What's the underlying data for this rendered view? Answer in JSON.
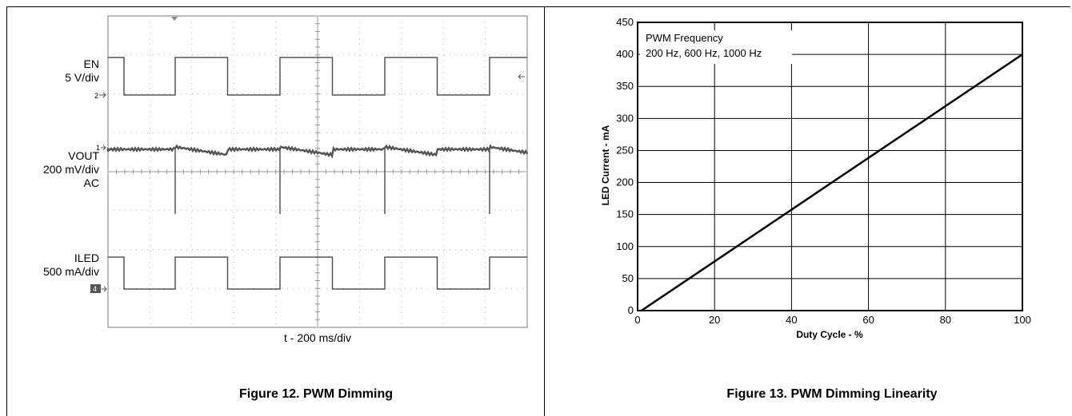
{
  "figures": [
    {
      "caption": "Figure 12. PWM Dimming",
      "xlabel": "t - 200 ms/div",
      "channels": [
        {
          "lines": [
            "EN",
            "5 V/div"
          ]
        },
        {
          "lines": [
            "VOUT",
            "200 mV/div",
            "AC"
          ]
        },
        {
          "lines": [
            "ILED",
            "500 mA/div"
          ]
        }
      ],
      "markers": {
        "ch2": "2",
        "ch1": "1",
        "ch4": "4"
      }
    },
    {
      "caption": "Figure 13. PWM Dimming Linearity"
    }
  ],
  "chart_data": [
    {
      "type": "line",
      "title": "",
      "xlabel": "t - 200 ms/div",
      "ylabel": "",
      "x_divisions": 10,
      "y_divisions": 8,
      "grid": "dotted",
      "series": [
        {
          "name": "EN",
          "pwm_period_div": 2.5,
          "duty_cycle": 0.5
        },
        {
          "name": "VOUT",
          "pwm_period_div": 2.5,
          "duty_cycle": 0.5
        },
        {
          "name": "ILED",
          "pwm_period_div": 2.5,
          "duty_cycle": 0.5
        }
      ]
    },
    {
      "type": "line",
      "title": "",
      "annotation": [
        "PWM Frequency",
        "200 Hz, 600 Hz, 1000 Hz"
      ],
      "xlabel": "Duty Cycle - %",
      "ylabel": "LED Current - mA",
      "xlim": [
        0,
        100
      ],
      "ylim": [
        0,
        450
      ],
      "xticks": [
        0,
        20,
        40,
        60,
        80,
        100
      ],
      "yticks": [
        0,
        50,
        100,
        150,
        200,
        250,
        300,
        350,
        400,
        450
      ],
      "grid": true,
      "x": [
        1,
        100
      ],
      "y": [
        0,
        400
      ]
    }
  ]
}
